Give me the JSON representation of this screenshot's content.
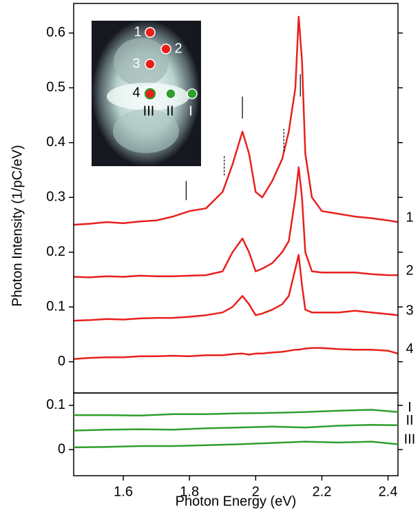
{
  "chart_data": [
    {
      "type": "line",
      "ylabel": "Photon Intensity (1/pC/eV)",
      "x": [
        1.45,
        1.5,
        1.55,
        1.6,
        1.65,
        1.7,
        1.75,
        1.8,
        1.85,
        1.9,
        1.93,
        1.96,
        1.98,
        2.0,
        2.02,
        2.05,
        2.08,
        2.1,
        2.12,
        2.13,
        2.14,
        2.15,
        2.17,
        2.2,
        2.25,
        2.3,
        2.35,
        2.4,
        2.43
      ],
      "series": [
        {
          "name": "1",
          "color": "#e8201c",
          "values": [
            0.25,
            0.252,
            0.255,
            0.253,
            0.256,
            0.258,
            0.265,
            0.275,
            0.28,
            0.31,
            0.36,
            0.42,
            0.38,
            0.31,
            0.3,
            0.33,
            0.37,
            0.42,
            0.5,
            0.63,
            0.55,
            0.38,
            0.3,
            0.275,
            0.27,
            0.265,
            0.262,
            0.258,
            0.255
          ]
        },
        {
          "name": "2",
          "color": "#e8201c",
          "values": [
            0.155,
            0.154,
            0.156,
            0.155,
            0.157,
            0.156,
            0.156,
            0.157,
            0.158,
            0.165,
            0.2,
            0.225,
            0.2,
            0.165,
            0.17,
            0.18,
            0.2,
            0.22,
            0.3,
            0.355,
            0.3,
            0.2,
            0.165,
            0.163,
            0.163,
            0.163,
            0.16,
            0.158,
            0.158
          ]
        },
        {
          "name": "3",
          "color": "#e8201c",
          "values": [
            0.075,
            0.076,
            0.078,
            0.077,
            0.079,
            0.08,
            0.08,
            0.082,
            0.085,
            0.09,
            0.1,
            0.12,
            0.105,
            0.085,
            0.088,
            0.095,
            0.105,
            0.12,
            0.17,
            0.195,
            0.14,
            0.095,
            0.09,
            0.09,
            0.09,
            0.093,
            0.09,
            0.087,
            0.085
          ]
        },
        {
          "name": "4",
          "color": "#e8201c",
          "values": [
            0.005,
            0.007,
            0.008,
            0.008,
            0.01,
            0.01,
            0.011,
            0.01,
            0.012,
            0.012,
            0.014,
            0.015,
            0.013,
            0.015,
            0.015,
            0.017,
            0.018,
            0.02,
            0.022,
            0.022,
            0.023,
            0.024,
            0.025,
            0.025,
            0.023,
            0.022,
            0.022,
            0.02,
            0.015
          ]
        }
      ],
      "ylim": [
        -0.057,
        0.654
      ],
      "yticks": [
        0,
        0.1,
        0.2,
        0.3,
        0.4,
        0.5,
        0.6
      ],
      "xlim": [
        1.45,
        2.43
      ],
      "markers": [
        {
          "x": 1.79,
          "y": [
            0.295,
            0.33
          ],
          "dashed": false
        },
        {
          "x": 1.905,
          "y": [
            0.34,
            0.377
          ],
          "dashed": true
        },
        {
          "x": 1.96,
          "y": [
            0.444,
            0.484
          ],
          "dashed": false
        },
        {
          "x": 2.085,
          "y": [
            0.384,
            0.425
          ],
          "dashed": true
        },
        {
          "x": 2.135,
          "y": [
            0.484,
            0.525
          ],
          "dashed": false
        }
      ]
    },
    {
      "type": "line",
      "xlabel": "Photon Energy (eV)",
      "x": [
        1.45,
        1.55,
        1.65,
        1.75,
        1.85,
        1.95,
        2.05,
        2.15,
        2.25,
        2.35,
        2.43
      ],
      "series": [
        {
          "name": "I",
          "color": "#2e9e2e",
          "values": [
            0.078,
            0.078,
            0.077,
            0.08,
            0.08,
            0.082,
            0.083,
            0.085,
            0.088,
            0.09,
            0.085
          ]
        },
        {
          "name": "II",
          "color": "#2e9e2e",
          "values": [
            0.043,
            0.045,
            0.046,
            0.045,
            0.048,
            0.05,
            0.052,
            0.05,
            0.054,
            0.056,
            0.055
          ]
        },
        {
          "name": "III",
          "color": "#2e9e2e",
          "values": [
            0.005,
            0.006,
            0.008,
            0.008,
            0.01,
            0.012,
            0.015,
            0.018,
            0.016,
            0.018,
            0.012
          ]
        }
      ],
      "ylim": [
        -0.059,
        0.128
      ],
      "yticks": [
        0,
        0.1
      ],
      "xlim": [
        1.45,
        2.43
      ],
      "xticks": [
        1.6,
        1.8,
        2,
        2.2,
        2.4
      ]
    }
  ],
  "inset": {
    "points": [
      "1",
      "2",
      "3",
      "4",
      "III",
      "II",
      "I"
    ]
  }
}
